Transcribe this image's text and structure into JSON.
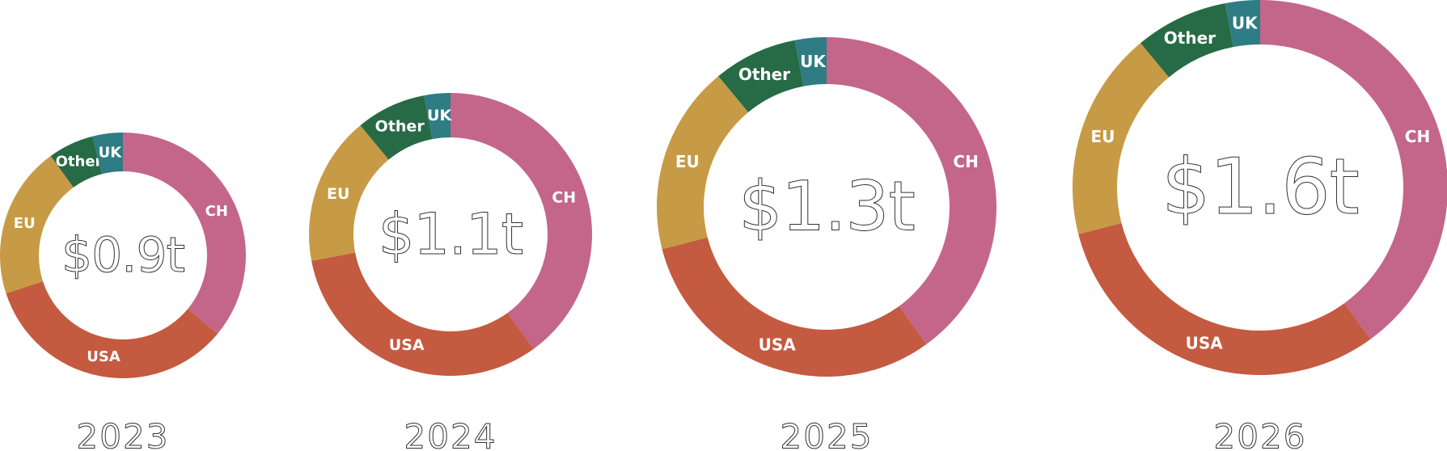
{
  "chart_data": {
    "type": "donut",
    "categories": [
      "CH",
      "USA",
      "EU",
      "Other",
      "UK"
    ],
    "colors": {
      "CH": "#c4668a",
      "USA": "#c45a40",
      "EU": "#c79a45",
      "Other": "#266b45",
      "UK": "#2e7c84"
    },
    "charts": [
      {
        "year": "2023",
        "total": "$0.9t",
        "shares": {
          "CH": 0.36,
          "USA": 0.34,
          "EU": 0.2,
          "Other": 0.06,
          "UK": 0.04
        }
      },
      {
        "year": "2024",
        "total": "$1.1t",
        "shares": {
          "CH": 0.4,
          "USA": 0.32,
          "EU": 0.17,
          "Other": 0.08,
          "UK": 0.03
        }
      },
      {
        "year": "2025",
        "total": "$1.3t",
        "shares": {
          "CH": 0.4,
          "USA": 0.31,
          "EU": 0.18,
          "Other": 0.08,
          "UK": 0.03
        }
      },
      {
        "year": "2026",
        "total": "$1.6t",
        "shares": {
          "CH": 0.4,
          "USA": 0.31,
          "EU": 0.18,
          "Other": 0.08,
          "UK": 0.03
        }
      }
    ]
  }
}
